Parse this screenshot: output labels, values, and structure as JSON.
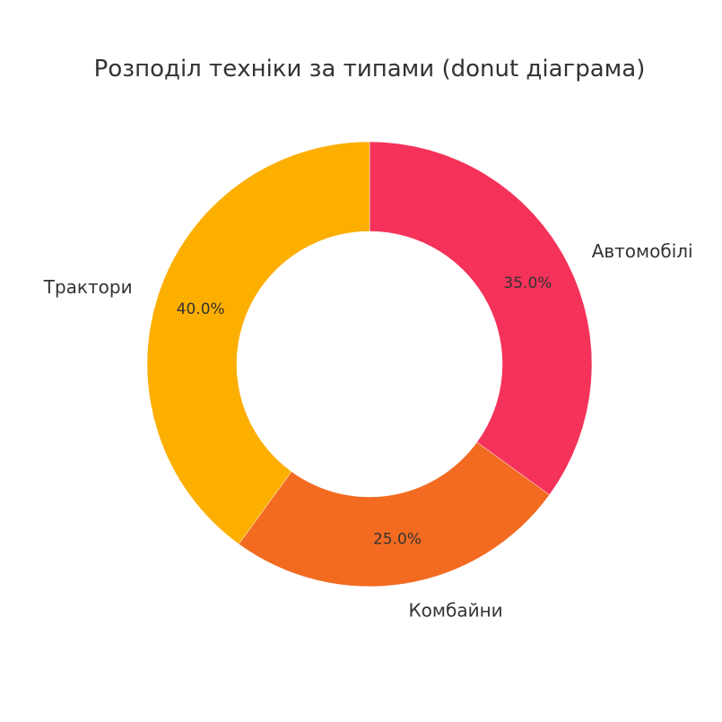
{
  "chart_data": {
    "type": "pie",
    "variant": "donut",
    "title": "Розподіл техніки за типами (donut діаграма)",
    "start_angle_deg": 90,
    "direction": "clockwise",
    "slices": [
      {
        "label": "Автомобілі",
        "value": 35.0,
        "pct_label": "35.0%",
        "color": "#f5325a"
      },
      {
        "label": "Комбайни",
        "value": 25.0,
        "pct_label": "25.0%",
        "color": "#f26b21"
      },
      {
        "label": "Трактори",
        "value": 40.0,
        "pct_label": "40.0%",
        "color": "#fdaf00"
      }
    ],
    "legend": "none"
  }
}
